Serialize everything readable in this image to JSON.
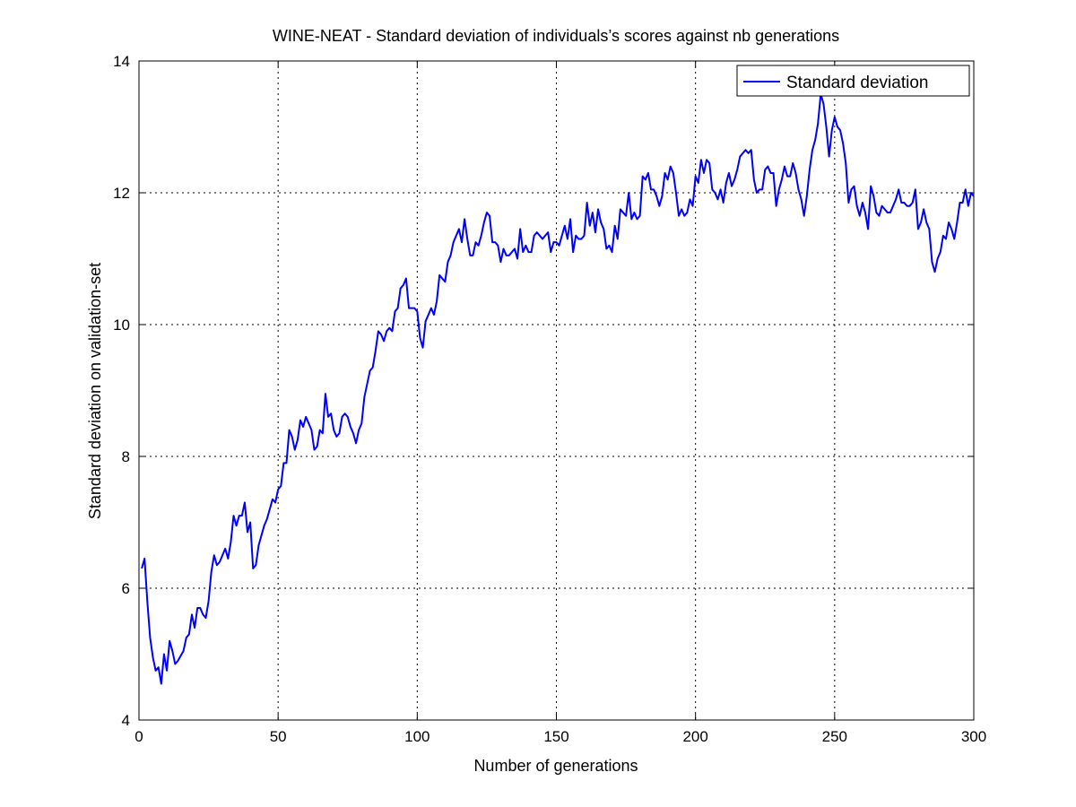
{
  "chart_data": {
    "type": "line",
    "title": "WINE-NEAT - Standard deviation of individuals’s scores against nb generations",
    "xlabel": "Number of generations",
    "ylabel": "Standard deviation on validation-set",
    "xlim": [
      0,
      300
    ],
    "ylim": [
      4,
      14
    ],
    "xticks": [
      0,
      50,
      100,
      150,
      200,
      250,
      300
    ],
    "yticks": [
      4,
      6,
      8,
      10,
      12,
      14
    ],
    "grid": true,
    "legend": "top-right",
    "series": [
      {
        "name": "Standard deviation",
        "color": "#0000ff",
        "anchors": [
          [
            1,
            6.3
          ],
          [
            2,
            6.45
          ],
          [
            3,
            5.8
          ],
          [
            4,
            5.25
          ],
          [
            5,
            4.95
          ],
          [
            6,
            4.75
          ],
          [
            7,
            4.8
          ],
          [
            8,
            4.55
          ],
          [
            9,
            5.0
          ],
          [
            10,
            4.75
          ],
          [
            11,
            5.2
          ],
          [
            12,
            5.05
          ],
          [
            13,
            4.85
          ],
          [
            14,
            4.9
          ],
          [
            16,
            5.05
          ],
          [
            17,
            5.25
          ],
          [
            18,
            5.3
          ],
          [
            19,
            5.6
          ],
          [
            20,
            5.4
          ],
          [
            21,
            5.7
          ],
          [
            22,
            5.7
          ],
          [
            23,
            5.6
          ],
          [
            24,
            5.55
          ],
          [
            25,
            5.8
          ],
          [
            26,
            6.25
          ],
          [
            27,
            6.5
          ],
          [
            28,
            6.35
          ],
          [
            29,
            6.4
          ],
          [
            30,
            6.5
          ],
          [
            31,
            6.6
          ],
          [
            32,
            6.45
          ],
          [
            33,
            6.7
          ],
          [
            34,
            7.1
          ],
          [
            35,
            6.95
          ],
          [
            36,
            7.1
          ],
          [
            37,
            7.1
          ],
          [
            38,
            7.3
          ],
          [
            39,
            6.85
          ],
          [
            40,
            7.0
          ],
          [
            41,
            6.3
          ],
          [
            42,
            6.35
          ],
          [
            43,
            6.65
          ],
          [
            44,
            6.8
          ],
          [
            45,
            6.95
          ],
          [
            46,
            7.05
          ],
          [
            47,
            7.2
          ],
          [
            48,
            7.35
          ],
          [
            49,
            7.3
          ],
          [
            50,
            7.5
          ],
          [
            51,
            7.55
          ],
          [
            52,
            7.9
          ],
          [
            53,
            7.9
          ],
          [
            54,
            8.4
          ],
          [
            55,
            8.3
          ],
          [
            56,
            8.1
          ],
          [
            57,
            8.25
          ],
          [
            58,
            8.55
          ],
          [
            59,
            8.45
          ],
          [
            60,
            8.6
          ],
          [
            61,
            8.5
          ],
          [
            62,
            8.4
          ],
          [
            63,
            8.1
          ],
          [
            64,
            8.15
          ],
          [
            65,
            8.4
          ],
          [
            66,
            8.35
          ],
          [
            67,
            8.95
          ],
          [
            68,
            8.6
          ],
          [
            69,
            8.65
          ],
          [
            70,
            8.4
          ],
          [
            71,
            8.3
          ],
          [
            72,
            8.35
          ],
          [
            73,
            8.6
          ],
          [
            74,
            8.65
          ],
          [
            75,
            8.6
          ],
          [
            76,
            8.45
          ],
          [
            77,
            8.35
          ],
          [
            78,
            8.2
          ],
          [
            79,
            8.4
          ],
          [
            80,
            8.5
          ],
          [
            81,
            8.9
          ],
          [
            82,
            9.1
          ],
          [
            83,
            9.3
          ],
          [
            84,
            9.35
          ],
          [
            85,
            9.6
          ],
          [
            86,
            9.9
          ],
          [
            87,
            9.85
          ],
          [
            88,
            9.75
          ],
          [
            89,
            9.9
          ],
          [
            90,
            9.95
          ],
          [
            91,
            9.9
          ],
          [
            92,
            10.2
          ],
          [
            93,
            10.25
          ],
          [
            94,
            10.55
          ],
          [
            95,
            10.6
          ],
          [
            96,
            10.7
          ],
          [
            97,
            10.25
          ],
          [
            98,
            10.25
          ],
          [
            99,
            10.25
          ],
          [
            100,
            10.2
          ],
          [
            101,
            9.8
          ],
          [
            102,
            9.65
          ],
          [
            103,
            10.05
          ],
          [
            104,
            10.15
          ],
          [
            105,
            10.25
          ],
          [
            106,
            10.15
          ],
          [
            107,
            10.35
          ],
          [
            108,
            10.75
          ],
          [
            109,
            10.7
          ],
          [
            110,
            10.65
          ],
          [
            111,
            10.95
          ],
          [
            112,
            11.05
          ],
          [
            113,
            11.25
          ],
          [
            114,
            11.35
          ],
          [
            115,
            11.45
          ],
          [
            116,
            11.25
          ],
          [
            117,
            11.6
          ],
          [
            118,
            11.3
          ],
          [
            119,
            11.05
          ],
          [
            120,
            11.05
          ],
          [
            121,
            11.25
          ],
          [
            122,
            11.2
          ],
          [
            123,
            11.35
          ],
          [
            124,
            11.55
          ],
          [
            125,
            11.7
          ],
          [
            126,
            11.65
          ],
          [
            127,
            11.25
          ],
          [
            128,
            11.25
          ],
          [
            129,
            11.2
          ],
          [
            130,
            10.95
          ],
          [
            131,
            11.15
          ],
          [
            132,
            11.05
          ],
          [
            133,
            11.05
          ],
          [
            134,
            11.1
          ],
          [
            135,
            11.15
          ],
          [
            136,
            11.0
          ],
          [
            137,
            11.45
          ],
          [
            138,
            11.1
          ],
          [
            139,
            11.2
          ],
          [
            140,
            11.1
          ],
          [
            141,
            11.1
          ],
          [
            142,
            11.35
          ],
          [
            143,
            11.4
          ],
          [
            144,
            11.35
          ],
          [
            145,
            11.3
          ],
          [
            146,
            11.35
          ],
          [
            147,
            11.4
          ],
          [
            148,
            11.1
          ],
          [
            149,
            11.25
          ],
          [
            150,
            11.25
          ],
          [
            151,
            11.2
          ],
          [
            152,
            11.35
          ],
          [
            153,
            11.5
          ],
          [
            154,
            11.3
          ],
          [
            155,
            11.6
          ],
          [
            156,
            11.1
          ],
          [
            157,
            11.35
          ],
          [
            158,
            11.3
          ],
          [
            159,
            11.3
          ],
          [
            160,
            11.35
          ],
          [
            161,
            11.85
          ],
          [
            162,
            11.5
          ],
          [
            163,
            11.7
          ],
          [
            164,
            11.4
          ],
          [
            165,
            11.75
          ],
          [
            166,
            11.55
          ],
          [
            167,
            11.45
          ],
          [
            168,
            11.15
          ],
          [
            169,
            11.2
          ],
          [
            170,
            11.1
          ],
          [
            171,
            11.5
          ],
          [
            172,
            11.3
          ],
          [
            173,
            11.75
          ],
          [
            174,
            11.7
          ],
          [
            175,
            11.65
          ],
          [
            176,
            12.0
          ],
          [
            177,
            11.6
          ],
          [
            178,
            11.7
          ],
          [
            179,
            11.6
          ],
          [
            180,
            11.65
          ],
          [
            181,
            12.25
          ],
          [
            182,
            12.2
          ],
          [
            183,
            12.3
          ],
          [
            184,
            12.05
          ],
          [
            185,
            12.05
          ],
          [
            186,
            11.95
          ],
          [
            187,
            11.8
          ],
          [
            188,
            11.95
          ],
          [
            189,
            12.3
          ],
          [
            190,
            12.2
          ],
          [
            191,
            12.4
          ],
          [
            192,
            12.3
          ],
          [
            193,
            12.0
          ],
          [
            194,
            11.65
          ],
          [
            195,
            11.75
          ],
          [
            196,
            11.65
          ],
          [
            197,
            11.7
          ],
          [
            198,
            11.9
          ],
          [
            199,
            11.8
          ],
          [
            200,
            12.25
          ],
          [
            201,
            12.15
          ],
          [
            202,
            12.5
          ],
          [
            203,
            12.3
          ],
          [
            204,
            12.5
          ],
          [
            205,
            12.45
          ],
          [
            206,
            12.05
          ],
          [
            207,
            12.0
          ],
          [
            208,
            11.9
          ],
          [
            209,
            12.05
          ],
          [
            210,
            11.85
          ],
          [
            211,
            12.15
          ],
          [
            212,
            12.3
          ],
          [
            213,
            12.1
          ],
          [
            214,
            12.2
          ],
          [
            215,
            12.35
          ],
          [
            216,
            12.55
          ],
          [
            217,
            12.6
          ],
          [
            218,
            12.65
          ],
          [
            219,
            12.6
          ],
          [
            220,
            12.65
          ],
          [
            221,
            12.2
          ],
          [
            222,
            12.0
          ],
          [
            223,
            12.05
          ],
          [
            224,
            12.05
          ],
          [
            225,
            12.35
          ],
          [
            226,
            12.4
          ],
          [
            227,
            12.3
          ],
          [
            228,
            12.3
          ],
          [
            229,
            11.8
          ],
          [
            230,
            12.05
          ],
          [
            231,
            12.2
          ],
          [
            232,
            12.4
          ],
          [
            233,
            12.25
          ],
          [
            234,
            12.25
          ],
          [
            235,
            12.45
          ],
          [
            236,
            12.3
          ],
          [
            237,
            12.05
          ],
          [
            238,
            11.9
          ],
          [
            239,
            11.65
          ],
          [
            240,
            11.95
          ],
          [
            241,
            12.35
          ],
          [
            242,
            12.65
          ],
          [
            243,
            12.8
          ],
          [
            244,
            13.05
          ],
          [
            245,
            13.5
          ],
          [
            246,
            13.35
          ],
          [
            247,
            13.0
          ],
          [
            248,
            12.55
          ],
          [
            249,
            12.95
          ],
          [
            250,
            13.15
          ],
          [
            251,
            13.0
          ],
          [
            252,
            12.95
          ],
          [
            253,
            12.75
          ],
          [
            254,
            12.45
          ],
          [
            255,
            11.85
          ],
          [
            256,
            12.05
          ],
          [
            257,
            12.1
          ],
          [
            258,
            11.8
          ],
          [
            259,
            11.65
          ],
          [
            260,
            11.85
          ],
          [
            261,
            11.7
          ],
          [
            262,
            11.45
          ],
          [
            263,
            12.1
          ],
          [
            264,
            11.95
          ],
          [
            265,
            11.7
          ],
          [
            266,
            11.65
          ],
          [
            267,
            11.8
          ],
          [
            268,
            11.75
          ],
          [
            269,
            11.7
          ],
          [
            270,
            11.7
          ],
          [
            271,
            11.8
          ],
          [
            272,
            11.9
          ],
          [
            273,
            12.05
          ],
          [
            274,
            11.85
          ],
          [
            275,
            11.85
          ],
          [
            276,
            11.8
          ],
          [
            277,
            11.8
          ],
          [
            278,
            11.85
          ],
          [
            279,
            12.05
          ],
          [
            280,
            11.45
          ],
          [
            281,
            11.55
          ],
          [
            282,
            11.75
          ],
          [
            283,
            11.55
          ],
          [
            284,
            11.45
          ],
          [
            285,
            10.95
          ],
          [
            286,
            10.8
          ],
          [
            287,
            11.0
          ],
          [
            288,
            11.1
          ],
          [
            289,
            11.35
          ],
          [
            290,
            11.3
          ],
          [
            291,
            11.55
          ],
          [
            292,
            11.45
          ],
          [
            293,
            11.3
          ],
          [
            294,
            11.55
          ],
          [
            295,
            11.85
          ],
          [
            296,
            11.85
          ],
          [
            297,
            12.05
          ],
          [
            298,
            11.8
          ],
          [
            299,
            12.0
          ],
          [
            300,
            11.95
          ]
        ]
      }
    ]
  }
}
